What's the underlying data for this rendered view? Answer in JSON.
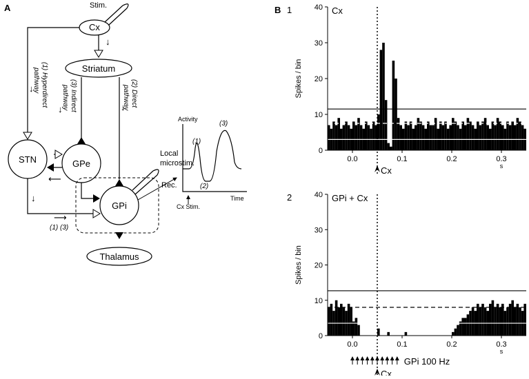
{
  "diagram": {
    "panel": "A",
    "stim": "Stim.",
    "cx": "Cx",
    "striatum": "Striatum",
    "hyperdirect": [
      "(1) Hyperdirect",
      "pathway"
    ],
    "indirect": [
      "(3) Indirect",
      "pathway"
    ],
    "direct": [
      "(2) Direct",
      "pathway"
    ],
    "stn": "STN",
    "gpe": "GPe",
    "gpi": "GPi",
    "thalamus": "Thalamus",
    "pathway_numbers": "(1) (3)",
    "microstim": [
      "Local",
      "microstim."
    ],
    "rec": "Rec.",
    "inset": {
      "ylabel": "Activity",
      "xlabel": "Time",
      "stim": "Cx Stim.",
      "phases": [
        "(1)",
        "(2)",
        "(3)"
      ]
    }
  },
  "panel_b": "B",
  "chart_data": [
    {
      "type": "histogram",
      "panel": "1",
      "title": "Cx",
      "ylabel": "Spikes / bin",
      "xunit": "s",
      "bins": [
        -0.05,
        -0.045,
        -0.04,
        -0.035,
        -0.03,
        -0.025,
        -0.02,
        -0.015,
        -0.01,
        -0.005,
        0,
        0.005,
        0.01,
        0.015,
        0.02,
        0.025,
        0.03,
        0.035,
        0.04,
        0.045,
        0.05,
        0.055,
        0.06,
        0.065,
        0.07,
        0.075,
        0.08,
        0.085,
        0.09,
        0.095,
        0.1,
        0.105,
        0.11,
        0.115,
        0.12,
        0.125,
        0.13,
        0.135,
        0.14,
        0.145,
        0.15,
        0.155,
        0.16,
        0.165,
        0.17,
        0.175,
        0.18,
        0.185,
        0.19,
        0.195,
        0.2,
        0.205,
        0.21,
        0.215,
        0.22,
        0.225,
        0.23,
        0.235,
        0.24,
        0.245,
        0.25,
        0.255,
        0.26,
        0.265,
        0.27,
        0.275,
        0.28,
        0.285,
        0.29,
        0.295,
        0.3,
        0.305,
        0.31,
        0.315,
        0.32,
        0.325,
        0.33,
        0.335,
        0.34,
        0.345,
        0.35
      ],
      "counts": [
        7,
        6,
        8,
        7,
        9,
        6,
        7,
        8,
        7,
        6,
        8,
        7,
        9,
        7,
        6,
        8,
        7,
        6,
        8,
        7,
        10,
        28,
        30,
        14,
        2,
        1,
        25,
        20,
        9,
        7,
        6,
        8,
        7,
        8,
        6,
        7,
        9,
        8,
        7,
        6,
        8,
        7,
        7,
        9,
        6,
        8,
        7,
        8,
        6,
        7,
        9,
        8,
        7,
        6,
        8,
        7,
        9,
        8,
        7,
        6,
        8,
        7,
        8,
        9,
        7,
        6,
        8,
        7,
        9,
        8,
        7,
        6,
        8,
        7,
        8,
        7,
        9,
        8,
        7,
        6
      ],
      "color": "#000",
      "xlim": [
        -0.05,
        0.35
      ],
      "ylim": [
        0,
        40
      ],
      "xticks": [
        {
          "value": 0,
          "label": "0.0"
        },
        0.1,
        0.2,
        0.3
      ],
      "yticks": [
        0,
        10,
        20,
        30,
        40
      ],
      "hlines": [
        {
          "y": 11.5,
          "dashed": false,
          "color": "#000"
        },
        {
          "y": 7.5,
          "dashed": true,
          "color": "#fff"
        },
        {
          "y": 3,
          "dashed": false,
          "color": "#fff"
        }
      ],
      "stim_x": 0.05,
      "stim_label": "Cx"
    },
    {
      "type": "histogram",
      "panel": "2",
      "title": "GPi + Cx",
      "ylabel": "Spikes / bin",
      "xunit": "s",
      "bins": [
        -0.05,
        -0.045,
        -0.04,
        -0.035,
        -0.03,
        -0.025,
        -0.02,
        -0.015,
        -0.01,
        -0.005,
        0,
        0.005,
        0.01,
        0.015,
        0.02,
        0.025,
        0.03,
        0.035,
        0.04,
        0.045,
        0.05,
        0.055,
        0.06,
        0.065,
        0.07,
        0.075,
        0.08,
        0.085,
        0.09,
        0.095,
        0.1,
        0.105,
        0.11,
        0.115,
        0.12,
        0.125,
        0.13,
        0.135,
        0.14,
        0.145,
        0.15,
        0.155,
        0.16,
        0.165,
        0.17,
        0.175,
        0.18,
        0.185,
        0.19,
        0.195,
        0.2,
        0.205,
        0.21,
        0.215,
        0.22,
        0.225,
        0.23,
        0.235,
        0.24,
        0.245,
        0.25,
        0.255,
        0.26,
        0.265,
        0.27,
        0.275,
        0.28,
        0.285,
        0.29,
        0.295,
        0.3,
        0.305,
        0.31,
        0.315,
        0.32,
        0.325,
        0.33,
        0.335,
        0.34,
        0.345,
        0.35
      ],
      "counts": [
        8,
        9,
        7,
        10,
        8,
        9,
        8,
        7,
        9,
        8,
        4,
        5,
        3,
        0,
        0,
        0,
        0,
        0,
        0,
        0,
        2,
        0,
        0,
        0,
        1,
        0,
        0,
        0,
        0,
        0,
        0,
        1,
        0,
        0,
        0,
        0,
        0,
        0,
        0,
        0,
        0,
        0,
        0,
        0,
        0,
        0,
        0,
        0,
        0,
        0,
        1,
        2,
        3,
        4,
        5,
        5,
        6,
        7,
        8,
        7,
        9,
        8,
        9,
        8,
        7,
        9,
        10,
        8,
        9,
        8,
        9,
        7,
        8,
        9,
        10,
        8,
        9,
        8,
        7,
        9
      ],
      "color": "#000",
      "xlim": [
        -0.05,
        0.35
      ],
      "ylim": [
        0,
        40
      ],
      "xticks": [
        {
          "value": 0,
          "label": "0.0"
        },
        0.1,
        0.2,
        0.3
      ],
      "yticks": [
        0,
        10,
        20,
        30,
        40
      ],
      "hlines": [
        {
          "y": 12.7,
          "dashed": false,
          "color": "#000"
        },
        {
          "y": 8,
          "dashed": true,
          "color": "#000"
        },
        {
          "y": 3.5,
          "dashed": false,
          "color": "#fff"
        }
      ],
      "stim_x": 0.05,
      "stim_label": "Cx",
      "train": {
        "x": [
          0,
          0.01,
          0.02,
          0.03,
          0.04,
          0.05,
          0.06,
          0.07,
          0.08,
          0.09
        ],
        "label": "GPi 100 Hz"
      }
    }
  ]
}
